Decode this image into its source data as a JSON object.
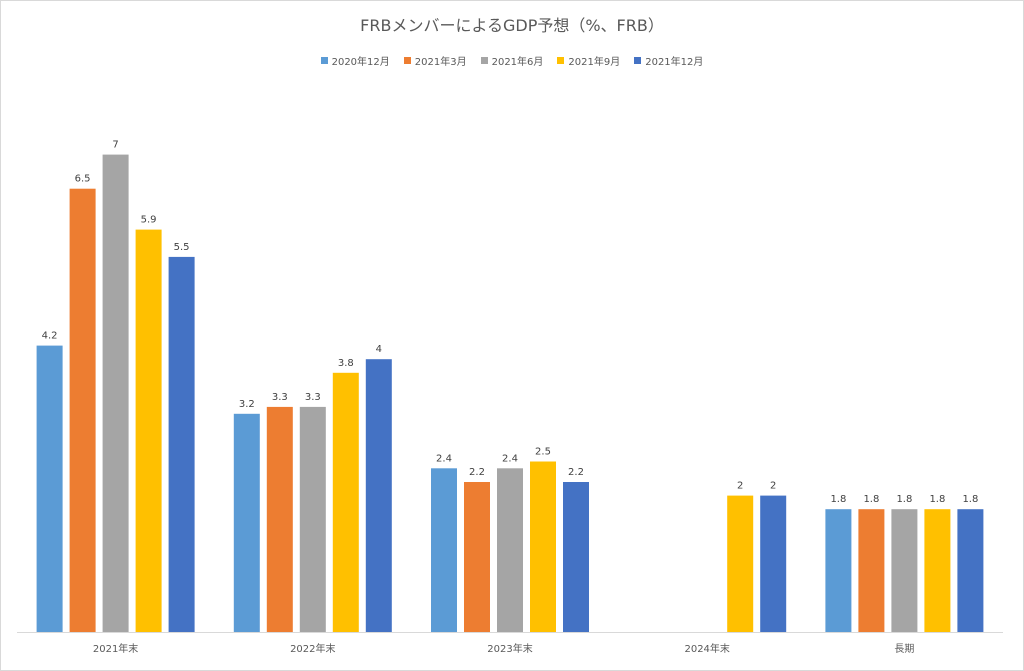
{
  "chart_data": {
    "type": "bar",
    "title": "FRBメンバーによるGDP予想（%、FRB）",
    "categories": [
      "2021年末",
      "2022年末",
      "2023年末",
      "2024年末",
      "長期"
    ],
    "series": [
      {
        "name": "2020年12月",
        "color": "#5b9bd5",
        "values": [
          4.2,
          3.2,
          2.4,
          null,
          1.8
        ]
      },
      {
        "name": "2021年3月",
        "color": "#ed7d31",
        "values": [
          6.5,
          3.3,
          2.2,
          null,
          1.8
        ]
      },
      {
        "name": "2021年6月",
        "color": "#a5a5a5",
        "values": [
          7,
          3.3,
          2.4,
          null,
          1.8
        ]
      },
      {
        "name": "2021年9月",
        "color": "#ffc000",
        "values": [
          5.9,
          3.8,
          2.5,
          2,
          1.8
        ]
      },
      {
        "name": "2021年12月",
        "color": "#4472c4",
        "values": [
          5.5,
          4,
          2.2,
          2,
          1.8
        ]
      }
    ],
    "ylim": [
      0,
      8
    ],
    "legend_position": "top",
    "grid": false,
    "data_labels": true
  }
}
